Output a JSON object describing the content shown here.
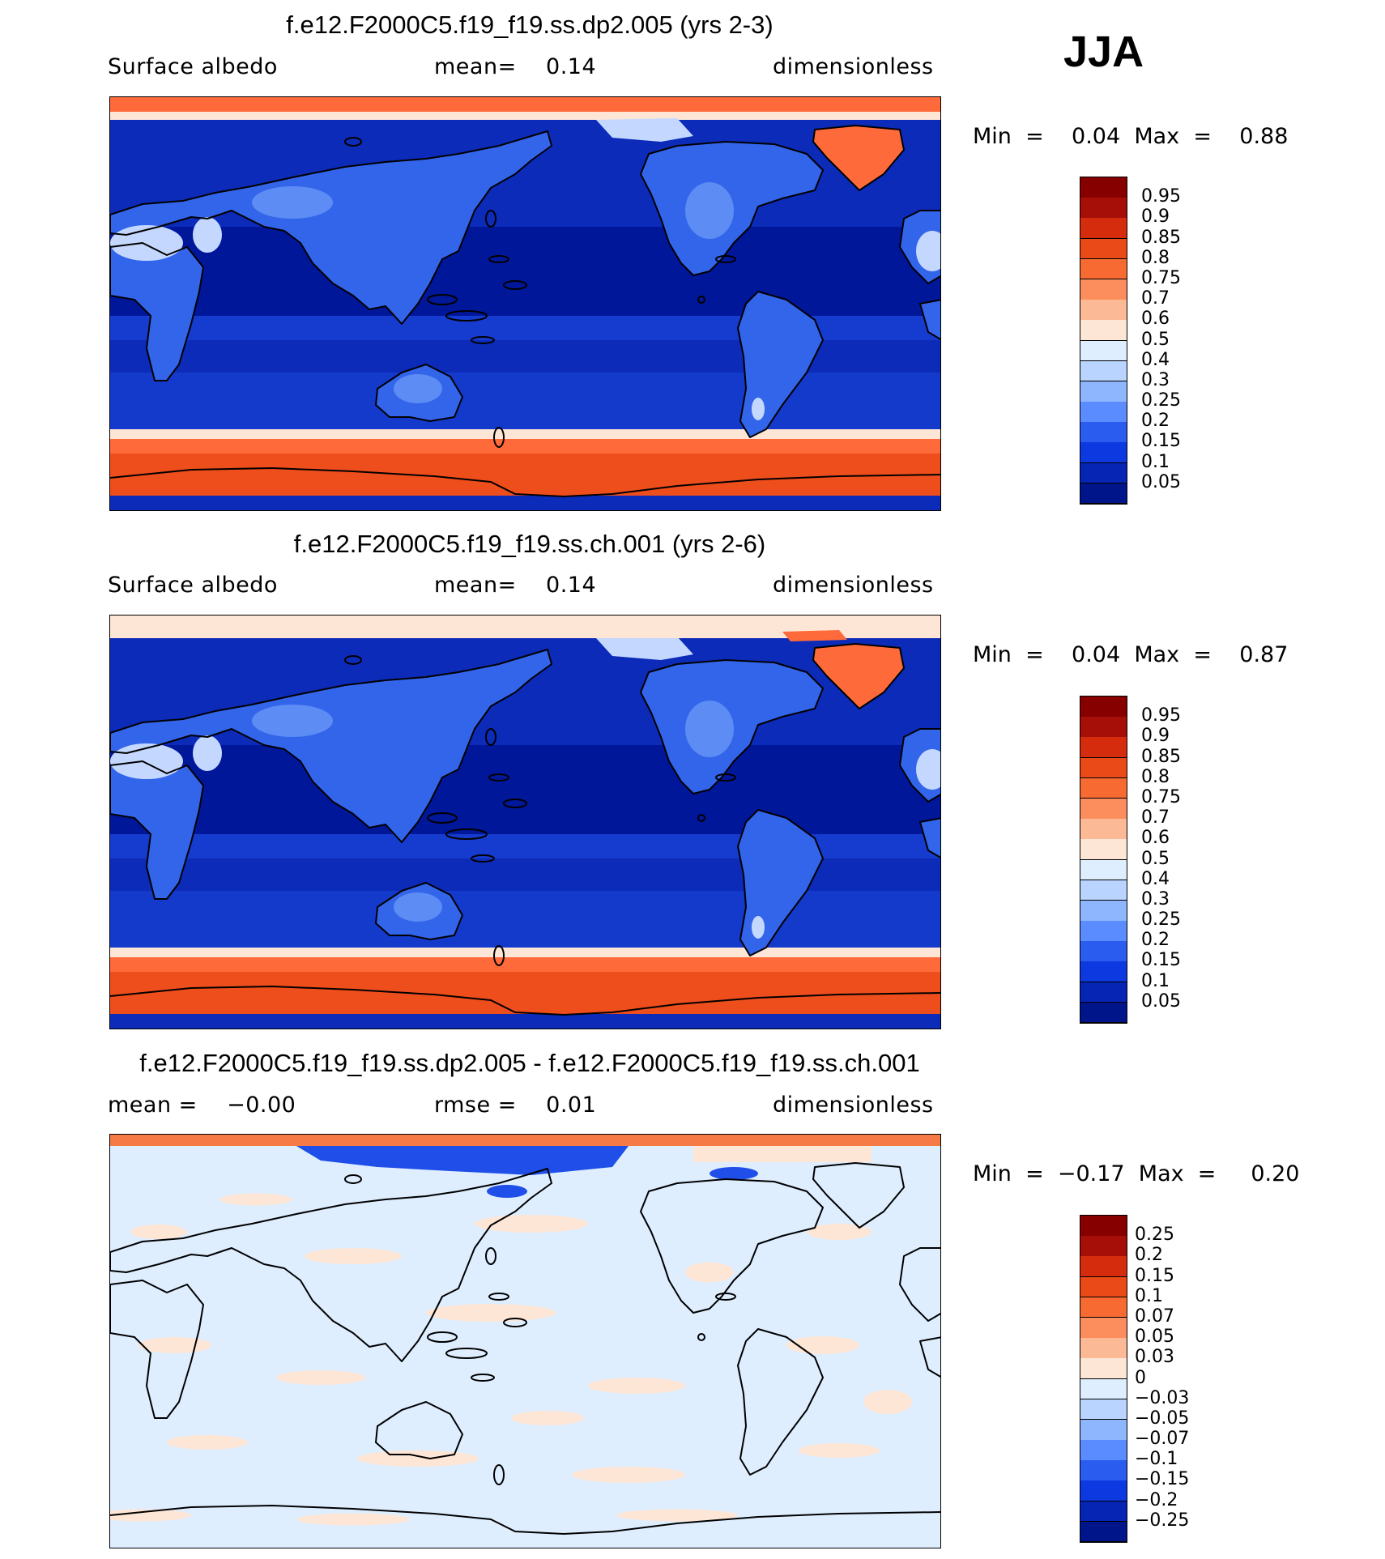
{
  "season": "JJA",
  "panels": [
    {
      "title": "f.e12.F2000C5.f19_f19.ss.dp2.005 (yrs 2-3)",
      "left_label": "Surface albedo",
      "center_label": "mean=    0.14",
      "right_label": "dimensionless",
      "min_label": "Min  =",
      "min_value": "0.04",
      "max_label": "Max  =",
      "max_value": "0.88",
      "variant": "abs"
    },
    {
      "title": "f.e12.F2000C5.f19_f19.ss.ch.001 (yrs 2-6)",
      "left_label": "Surface albedo",
      "center_label": "mean=    0.14",
      "right_label": "dimensionless",
      "min_label": "Min  =",
      "min_value": "0.04",
      "max_label": "Max  =",
      "max_value": "0.87",
      "variant": "abs"
    },
    {
      "title": "f.e12.F2000C5.f19_f19.ss.dp2.005 - f.e12.F2000C5.f19_f19.ss.ch.001",
      "left_label": "mean =    −0.00",
      "center_label": "rmse =    0.01",
      "right_label": "dimensionless",
      "min_label": "Min  =",
      "min_value": "−0.17",
      "max_label": "Max  =",
      "max_value": "0.20",
      "variant": "diff"
    }
  ],
  "colorbars": {
    "abs": {
      "labels": [
        "0.95",
        "0.9",
        "0.85",
        "0.8",
        "0.75",
        "0.7",
        "0.6",
        "0.5",
        "0.4",
        "0.3",
        "0.25",
        "0.2",
        "0.15",
        "0.1",
        "0.05"
      ],
      "colors": [
        "#870000",
        "#a50f07",
        "#d42c0c",
        "#ea4a17",
        "#f76b33",
        "#fb8e5c",
        "#fcb995",
        "#fde6d6",
        "#deeeff",
        "#b9d5ff",
        "#8eb6ff",
        "#5b8cff",
        "#2a5cf0",
        "#0d3ae0",
        "#0725b5",
        "#00158a"
      ]
    },
    "diff": {
      "labels": [
        "0.25",
        "0.2",
        "0.15",
        "0.1",
        "0.07",
        "0.05",
        "0.03",
        "0",
        "−0.03",
        "−0.05",
        "−0.07",
        "−0.1",
        "−0.15",
        "−0.2",
        "−0.25"
      ],
      "colors": [
        "#870000",
        "#a50f07",
        "#d42c0c",
        "#ea4a17",
        "#f76b33",
        "#fb8e5c",
        "#fcb995",
        "#fde6d6",
        "#deeeff",
        "#b9d5ff",
        "#8eb6ff",
        "#5b8cff",
        "#2a5cf0",
        "#0d3ae0",
        "#0725b5",
        "#00158a"
      ]
    }
  },
  "field_colors": {
    "ocean": "#0b2bb8",
    "ocean_deep": "#00179a",
    "ocean_mid": "#1d47dc",
    "land_low": "#3365ea",
    "land_mid": "#5d8cf5",
    "desert": "#c4d8ff",
    "ice": "#ff6a3a",
    "ice_edge": "#fde6d6",
    "antarctic": "#ee4d1c",
    "diff_pos": "#fde6d6",
    "diff_neg": "#deeeff",
    "diff_blue": "#1f4ee8",
    "diff_red": "#f57a45",
    "coast": "#000000"
  }
}
